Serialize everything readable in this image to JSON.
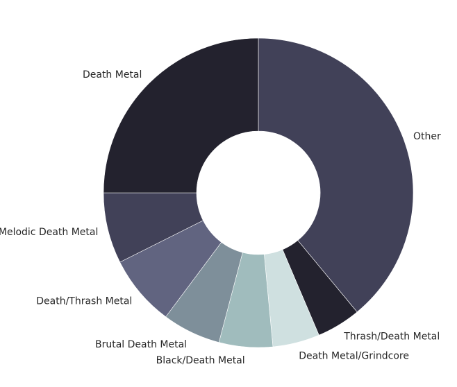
{
  "chart_data": {
    "type": "pie",
    "style": "donut",
    "title": "",
    "start_angle_deg": 90,
    "direction": "clockwise",
    "slices": [
      {
        "label": "Other",
        "value": 39.0,
        "color": "#414158"
      },
      {
        "label": "Thrash/Death Metal",
        "value": 4.6,
        "color": "#23222e"
      },
      {
        "label": "Death Metal/Grindcore",
        "value": 4.9,
        "color": "#cfe0e0"
      },
      {
        "label": "Black/Death Metal",
        "value": 5.6,
        "color": "#a0bcbd"
      },
      {
        "label": "Brutal Death Metal",
        "value": 6.1,
        "color": "#7e8f9a"
      },
      {
        "label": "Death/Thrash Metal",
        "value": 7.4,
        "color": "#616480"
      },
      {
        "label": "Melodic Death Metal",
        "value": 7.4,
        "color": "#414158"
      },
      {
        "label": "Death Metal",
        "value": 25.0,
        "color": "#23222e"
      }
    ]
  }
}
